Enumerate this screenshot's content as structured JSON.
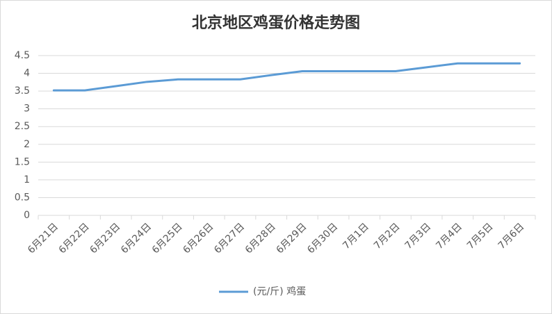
{
  "chart_data": {
    "type": "line",
    "title": "北京地区鸡蛋价格走势图",
    "categories": [
      "6月21日",
      "6月22日",
      "6月23日",
      "6月24日",
      "6月25日",
      "6月26日",
      "6月27日",
      "6月28日",
      "6月29日",
      "6月30日",
      "7月1日",
      "7月2日",
      "7月3日",
      "7月4日",
      "7月5日",
      "7月6日"
    ],
    "series": [
      {
        "name": "(元/斤) 鸡蛋",
        "color": "#5b9bd5",
        "values": [
          3.52,
          3.52,
          3.64,
          3.76,
          3.83,
          3.83,
          3.83,
          3.95,
          4.06,
          4.06,
          4.06,
          4.06,
          4.17,
          4.28,
          4.28,
          4.28
        ]
      }
    ],
    "ylim": [
      0,
      4.5
    ],
    "yticks": [
      0,
      0.5,
      1,
      1.5,
      2,
      2.5,
      3,
      3.5,
      4,
      4.5
    ],
    "grid": true,
    "legend": "bottom"
  }
}
